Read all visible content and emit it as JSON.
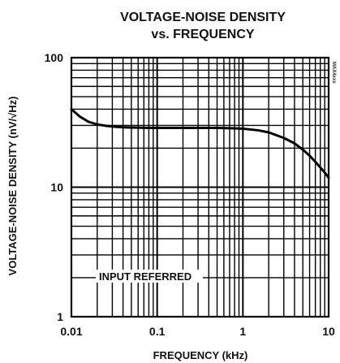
{
  "chart_data": {
    "type": "line",
    "title": [
      "VOLTAGE-NOISE DENSITY",
      "vs. FREQUENCY"
    ],
    "xlabel": "FREQUENCY (kHz)",
    "ylabel": "VOLTAGE-NOISE DENSITY (nV/√Hz)",
    "x_scale": "log",
    "y_scale": "log",
    "xlim": [
      0.01,
      10
    ],
    "ylim": [
      1,
      100
    ],
    "x_ticks": [
      0.01,
      0.1,
      1,
      10
    ],
    "x_tick_labels": [
      "0.01",
      "0.1",
      "1",
      "10"
    ],
    "y_ticks": [
      1,
      10,
      100
    ],
    "y_tick_labels": [
      "1",
      "10",
      "100"
    ],
    "grid": true,
    "annotation": "INPUT REFERRED",
    "figure_id": "MAX4xxx",
    "series": [
      {
        "x": [
          0.01,
          0.0126,
          0.0158,
          0.02,
          0.025,
          0.0316,
          0.04,
          0.05,
          0.0631,
          0.08,
          0.1,
          0.15,
          0.2,
          0.3,
          0.5,
          0.8,
          1,
          1.5,
          2,
          3,
          4,
          5,
          6,
          7,
          8,
          9,
          10
        ],
        "y": [
          40,
          35,
          32,
          30.5,
          29.8,
          29.3,
          29,
          28.9,
          28.8,
          28.7,
          28.7,
          28.7,
          28.7,
          28.7,
          28.7,
          28.5,
          28.3,
          27.5,
          26.5,
          24,
          21.8,
          19.5,
          17.5,
          15.7,
          14.2,
          13,
          11.8
        ]
      }
    ]
  }
}
